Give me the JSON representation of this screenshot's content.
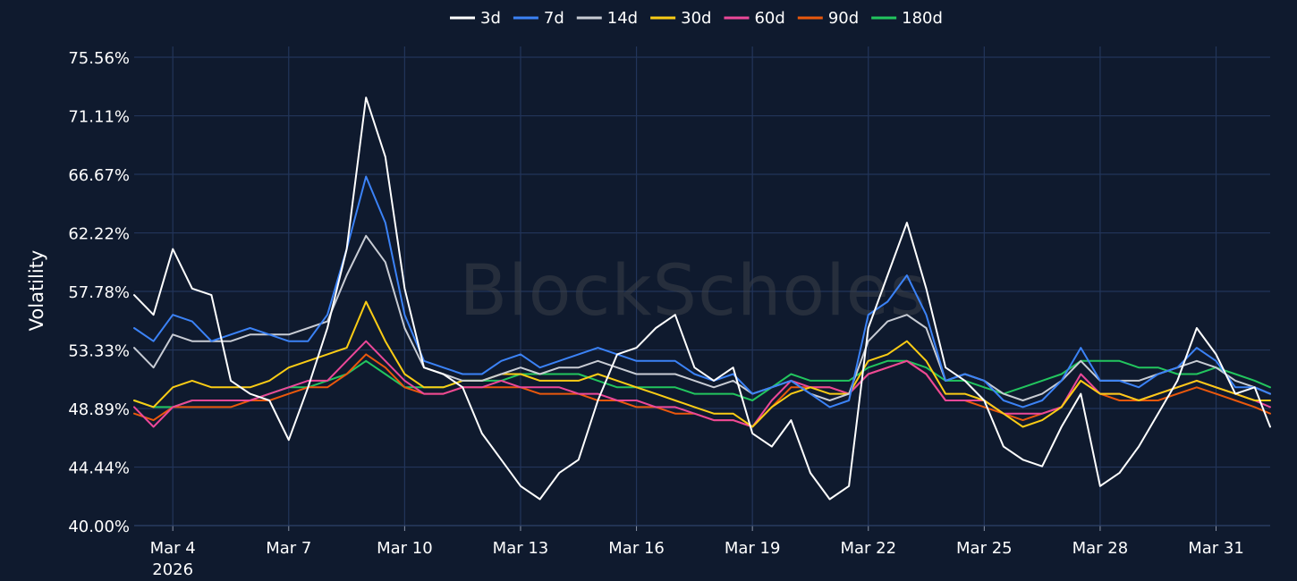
{
  "chart_data": {
    "type": "line",
    "ylabel": "Volatility",
    "watermark": "BlockScholes",
    "y_ticks": [
      "40.00%",
      "44.44%",
      "48.89%",
      "53.33%",
      "57.78%",
      "62.22%",
      "66.67%",
      "71.11%",
      "75.56%"
    ],
    "ylim": [
      40.0,
      75.56
    ],
    "x_ticks": [
      {
        "label": "Mar 4",
        "sub": "2026",
        "day": 4
      },
      {
        "label": "Mar 7",
        "sub": "",
        "day": 7
      },
      {
        "label": "Mar 10",
        "sub": "",
        "day": 10
      },
      {
        "label": "Mar 13",
        "sub": "",
        "day": 13
      },
      {
        "label": "Mar 16",
        "sub": "",
        "day": 16
      },
      {
        "label": "Mar 19",
        "sub": "",
        "day": 19
      },
      {
        "label": "Mar 22",
        "sub": "",
        "day": 22
      },
      {
        "label": "Mar 25",
        "sub": "",
        "day": 25
      },
      {
        "label": "Mar 28",
        "sub": "",
        "day": 28
      },
      {
        "label": "Mar 31",
        "sub": "",
        "day": 31
      }
    ],
    "xlim": [
      3.0,
      32.4
    ],
    "grid": true,
    "legend_position": "top-center",
    "x": [
      3.0,
      3.5,
      4.0,
      4.5,
      5.0,
      5.5,
      6.0,
      6.5,
      7.0,
      7.5,
      8.0,
      8.5,
      9.0,
      9.5,
      10.0,
      10.5,
      11.0,
      11.5,
      12.0,
      12.5,
      13.0,
      13.5,
      14.0,
      14.5,
      15.0,
      15.5,
      16.0,
      16.5,
      17.0,
      17.5,
      18.0,
      18.5,
      19.0,
      19.5,
      20.0,
      20.5,
      21.0,
      21.5,
      22.0,
      22.5,
      23.0,
      23.5,
      24.0,
      24.5,
      25.0,
      25.5,
      26.0,
      26.5,
      27.0,
      27.5,
      28.0,
      28.5,
      29.0,
      29.5,
      30.0,
      30.5,
      31.0,
      31.5,
      32.0,
      32.4
    ],
    "series": [
      {
        "name": "3d",
        "color": "#ffffff",
        "values": [
          57.5,
          56.0,
          61.0,
          58.0,
          57.5,
          51.0,
          50.0,
          49.5,
          46.5,
          50.5,
          55.0,
          61.0,
          72.5,
          68.0,
          58.0,
          52.0,
          51.5,
          50.5,
          47.0,
          45.0,
          43.0,
          42.0,
          44.0,
          45.0,
          49.5,
          53.0,
          53.5,
          55.0,
          56.0,
          52.0,
          51.0,
          52.0,
          47.0,
          46.0,
          48.0,
          44.0,
          42.0,
          43.0,
          55.0,
          59.0,
          63.0,
          58.0,
          52.0,
          51.0,
          49.5,
          46.0,
          45.0,
          44.5,
          47.5,
          50.0,
          43.0,
          44.0,
          46.0,
          48.5,
          51.0,
          55.0,
          53.0,
          50.0,
          50.5,
          47.5
        ]
      },
      {
        "name": "7d",
        "color": "#3b82f6",
        "values": [
          55.0,
          54.0,
          56.0,
          55.5,
          54.0,
          54.5,
          55.0,
          54.5,
          54.0,
          54.0,
          56.0,
          61.0,
          66.5,
          63.0,
          56.0,
          52.5,
          52.0,
          51.5,
          51.5,
          52.5,
          53.0,
          52.0,
          52.5,
          53.0,
          53.5,
          53.0,
          52.5,
          52.5,
          52.5,
          51.5,
          51.0,
          51.5,
          50.0,
          50.5,
          51.0,
          50.0,
          49.0,
          49.5,
          56.0,
          57.0,
          59.0,
          56.0,
          51.0,
          51.5,
          51.0,
          49.5,
          49.0,
          49.5,
          51.0,
          53.5,
          51.0,
          51.0,
          50.5,
          51.5,
          52.0,
          53.5,
          52.5,
          50.5,
          50.5,
          50.0
        ]
      },
      {
        "name": "14d",
        "color": "#c8ccd4",
        "values": [
          53.5,
          52.0,
          54.5,
          54.0,
          54.0,
          54.0,
          54.5,
          54.5,
          54.5,
          55.0,
          55.5,
          59.0,
          62.0,
          60.0,
          55.0,
          52.0,
          51.5,
          51.0,
          51.0,
          51.5,
          52.0,
          51.5,
          52.0,
          52.0,
          52.5,
          52.0,
          51.5,
          51.5,
          51.5,
          51.0,
          50.5,
          51.0,
          50.0,
          50.5,
          51.0,
          50.0,
          49.5,
          50.0,
          54.0,
          55.5,
          56.0,
          55.0,
          51.0,
          51.5,
          51.0,
          50.0,
          49.5,
          50.0,
          51.0,
          52.5,
          51.0,
          51.0,
          51.0,
          51.5,
          52.0,
          52.5,
          52.0,
          51.0,
          50.5,
          50.0
        ]
      },
      {
        "name": "30d",
        "color": "#facc15",
        "values": [
          49.5,
          49.0,
          50.5,
          51.0,
          50.5,
          50.5,
          50.5,
          51.0,
          52.0,
          52.5,
          53.0,
          53.5,
          57.0,
          54.0,
          51.5,
          50.5,
          50.5,
          51.0,
          51.0,
          51.5,
          51.5,
          51.0,
          51.0,
          51.0,
          51.5,
          51.0,
          50.5,
          50.0,
          49.5,
          49.0,
          48.5,
          48.5,
          47.5,
          49.0,
          50.0,
          50.5,
          50.0,
          50.0,
          52.5,
          53.0,
          54.0,
          52.5,
          50.0,
          50.0,
          49.5,
          48.5,
          47.5,
          48.0,
          49.0,
          51.0,
          50.0,
          50.0,
          49.5,
          50.0,
          50.5,
          51.0,
          50.5,
          50.0,
          49.5,
          49.5
        ]
      },
      {
        "name": "60d",
        "color": "#ec4899",
        "values": [
          49.0,
          47.5,
          49.0,
          49.5,
          49.5,
          49.5,
          49.5,
          50.0,
          50.5,
          51.0,
          51.0,
          52.5,
          54.0,
          52.5,
          51.0,
          50.0,
          50.0,
          50.5,
          50.5,
          51.0,
          50.5,
          50.5,
          50.5,
          50.0,
          50.0,
          49.5,
          49.5,
          49.0,
          49.0,
          48.5,
          48.0,
          48.0,
          47.5,
          49.5,
          51.0,
          50.5,
          50.5,
          50.0,
          51.5,
          52.0,
          52.5,
          51.5,
          49.5,
          49.5,
          49.5,
          48.5,
          48.5,
          48.5,
          49.0,
          51.5,
          50.0,
          50.0,
          49.5,
          50.0,
          50.5,
          51.0,
          50.5,
          50.0,
          49.5,
          49.0
        ]
      },
      {
        "name": "90d",
        "color": "#ea580c",
        "values": [
          48.5,
          48.0,
          49.0,
          49.0,
          49.0,
          49.0,
          49.5,
          49.5,
          50.0,
          50.5,
          50.5,
          51.5,
          53.0,
          52.0,
          50.5,
          50.0,
          50.0,
          50.5,
          50.5,
          50.5,
          50.5,
          50.0,
          50.0,
          50.0,
          49.5,
          49.5,
          49.0,
          49.0,
          48.5,
          48.5,
          48.0,
          48.0,
          47.5,
          49.0,
          50.5,
          50.5,
          50.5,
          50.0,
          51.5,
          52.0,
          52.5,
          51.5,
          49.5,
          49.5,
          49.0,
          48.5,
          48.0,
          48.5,
          49.0,
          51.0,
          50.0,
          49.5,
          49.5,
          49.5,
          50.0,
          50.5,
          50.0,
          49.5,
          49.0,
          48.5
        ]
      },
      {
        "name": "180d",
        "color": "#22c55e",
        "values": [
          49.5,
          49.0,
          49.0,
          49.5,
          49.5,
          49.5,
          49.5,
          50.0,
          50.5,
          50.5,
          51.0,
          51.5,
          52.5,
          51.5,
          50.5,
          50.5,
          50.5,
          51.0,
          51.0,
          51.0,
          51.5,
          51.5,
          51.5,
          51.5,
          51.0,
          50.5,
          50.5,
          50.5,
          50.5,
          50.0,
          50.0,
          50.0,
          49.5,
          50.5,
          51.5,
          51.0,
          51.0,
          51.0,
          52.0,
          52.5,
          52.5,
          52.0,
          51.0,
          51.0,
          50.5,
          50.0,
          50.5,
          51.0,
          51.5,
          52.5,
          52.5,
          52.5,
          52.0,
          52.0,
          51.5,
          51.5,
          52.0,
          51.5,
          51.0,
          50.5
        ]
      }
    ]
  }
}
